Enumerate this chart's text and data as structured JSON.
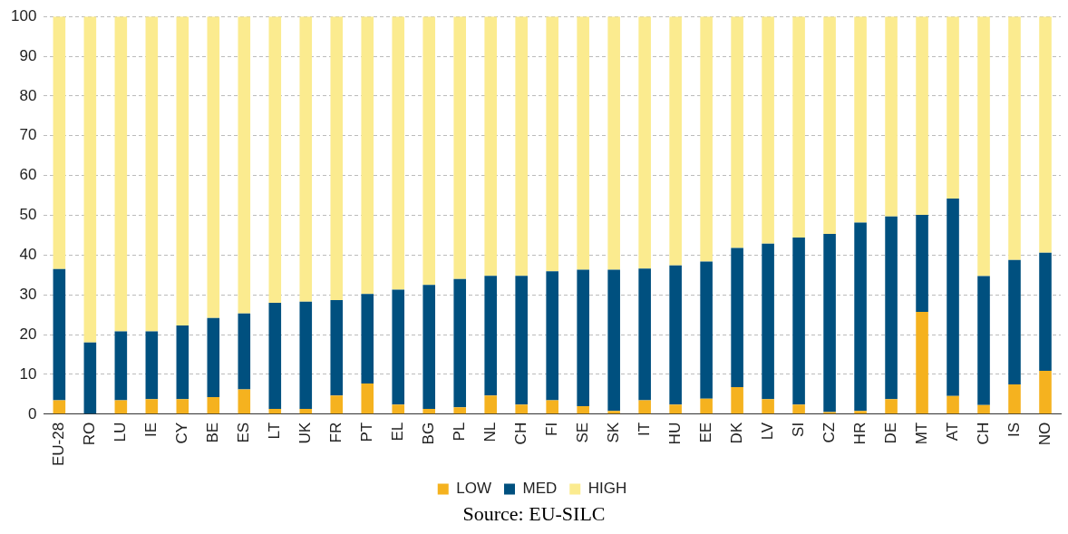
{
  "chart_data": {
    "type": "bar",
    "stacked": true,
    "categories": [
      "EU-28",
      "RO",
      "LU",
      "IE",
      "CY",
      "BE",
      "ES",
      "LT",
      "UK",
      "FR",
      "PT",
      "EL",
      "BG",
      "PL",
      "NL",
      "CH",
      "FI",
      "SE",
      "SK",
      "IT",
      "HU",
      "EE",
      "DK",
      "LV",
      "SI",
      "CZ",
      "HR",
      "DE",
      "MT",
      "AT",
      "CH",
      "IS",
      "NO"
    ],
    "series": [
      {
        "name": "LOW",
        "color": "#f5b21f",
        "values": [
          3.5,
          0,
          3.5,
          3.8,
          3.8,
          4.3,
          6.2,
          1.3,
          1.3,
          4.7,
          7.7,
          2.4,
          1.3,
          1.7,
          4.7,
          2.4,
          3.5,
          2,
          0.8,
          3.5,
          2.4,
          3.9,
          6.8,
          3.8,
          2.4,
          0.5,
          0.8,
          3.8,
          25.7,
          4.6,
          2.3,
          7.5,
          10.9
        ]
      },
      {
        "name": "MED",
        "color": "#00507f",
        "values": [
          33,
          18,
          17.3,
          17,
          18.5,
          19.9,
          19.1,
          26.7,
          27,
          24,
          22.5,
          28.9,
          31.2,
          32.3,
          30.1,
          32.4,
          32.4,
          34.3,
          35.5,
          33.1,
          35,
          34.5,
          35,
          39.1,
          42,
          44.8,
          47.4,
          45.9,
          24.4,
          49.6,
          32.4,
          31.3,
          29.7
        ]
      },
      {
        "name": "HIGH",
        "color": "#fbeb8f",
        "values": [
          63.5,
          82,
          79.2,
          79.2,
          77.7,
          75.8,
          74.7,
          72,
          71.7,
          71.3,
          69.8,
          68.7,
          67.5,
          66,
          65.2,
          65.2,
          64.1,
          63.7,
          63.7,
          63.4,
          62.6,
          61.6,
          58.2,
          57.1,
          55.6,
          54.7,
          51.8,
          50.3,
          49.9,
          45.8,
          65.3,
          61.2,
          59.4
        ]
      }
    ],
    "ylim": [
      0,
      100
    ],
    "yticks": [
      0,
      10,
      20,
      30,
      40,
      50,
      60,
      70,
      80,
      90,
      100
    ],
    "grid": "y",
    "legend": "bottom",
    "annotations": [
      "Source: EU-SILC"
    ]
  }
}
